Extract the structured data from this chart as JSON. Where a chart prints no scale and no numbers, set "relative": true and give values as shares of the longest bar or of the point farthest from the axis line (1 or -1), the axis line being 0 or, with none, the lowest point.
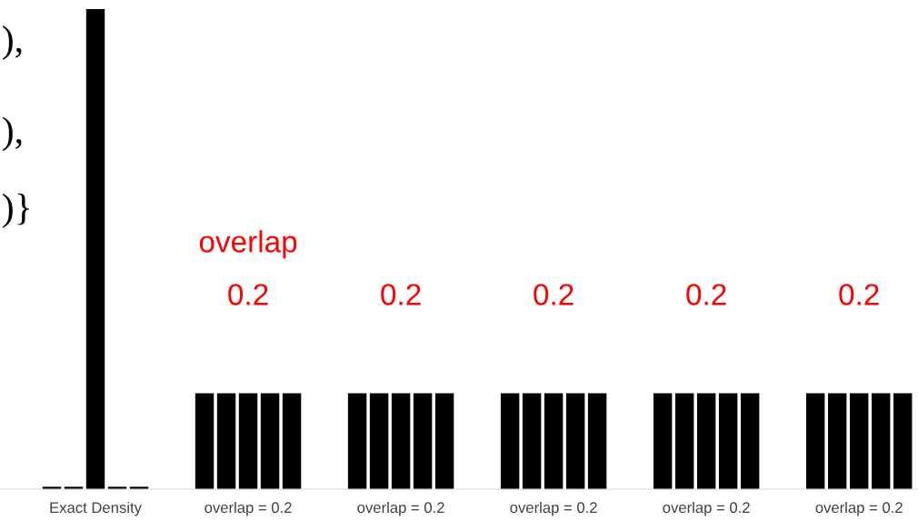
{
  "chart_data": {
    "type": "bar",
    "relative": true,
    "color": "#000000",
    "categories": [
      null,
      null,
      "Exact Density",
      null,
      null,
      null,
      null,
      null,
      null,
      "overlap = 0.2",
      null,
      null,
      null,
      null,
      null,
      null,
      "overlap = 0.2",
      null,
      null,
      null,
      null,
      null,
      null,
      "overlap = 0.2",
      null,
      null,
      null,
      null,
      null,
      null,
      "overlap = 0.2",
      null,
      null,
      null,
      null,
      null,
      null,
      "overlap = 0.2",
      null,
      null
    ],
    "values": [
      0.005,
      0.005,
      1,
      0.005,
      0.005,
      null,
      null,
      0.2,
      0.2,
      0.2,
      0.2,
      0.2,
      null,
      null,
      0.2,
      0.2,
      0.2,
      0.2,
      0.2,
      null,
      null,
      0.2,
      0.2,
      0.2,
      0.2,
      0.2,
      null,
      null,
      0.2,
      0.2,
      0.2,
      0.2,
      0.2,
      null,
      null,
      0.2,
      0.2,
      0.2,
      0.2,
      0.2
    ],
    "annotations": [
      "),",
      "),",
      ")}",
      "overlap",
      "0.2",
      "0.2",
      "0.2",
      "0.2",
      "0.2"
    ]
  }
}
